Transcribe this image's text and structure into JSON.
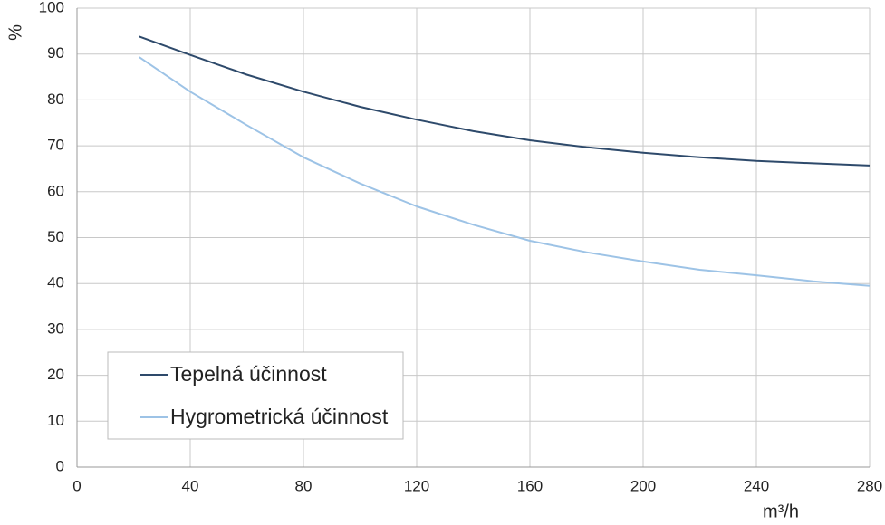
{
  "chart_data": {
    "type": "line",
    "x_label": "m³/h",
    "y_label": "%",
    "x": [
      22,
      40,
      60,
      80,
      100,
      120,
      140,
      160,
      180,
      200,
      220,
      240,
      260,
      280
    ],
    "series": [
      {
        "name": "Tepelná účinnost",
        "color": "#2e4a6b",
        "values": [
          93.8,
          89.8,
          85.5,
          81.8,
          78.5,
          75.7,
          73.2,
          71.2,
          69.7,
          68.5,
          67.5,
          66.7,
          66.2,
          65.7
        ]
      },
      {
        "name": "Hygrometrická účinnost",
        "color": "#9dc3e6",
        "values": [
          89.3,
          81.8,
          74.5,
          67.5,
          61.8,
          56.8,
          52.8,
          49.3,
          46.8,
          44.8,
          43.0,
          41.8,
          40.5,
          39.5
        ]
      }
    ],
    "xlim": [
      0,
      280
    ],
    "xticks": [
      0,
      40,
      80,
      120,
      160,
      200,
      240,
      280
    ],
    "ylim": [
      0,
      100
    ],
    "yticks": [
      0,
      10,
      20,
      30,
      40,
      50,
      60,
      70,
      80,
      90,
      100
    ],
    "grid": true,
    "legend": "lower left"
  }
}
